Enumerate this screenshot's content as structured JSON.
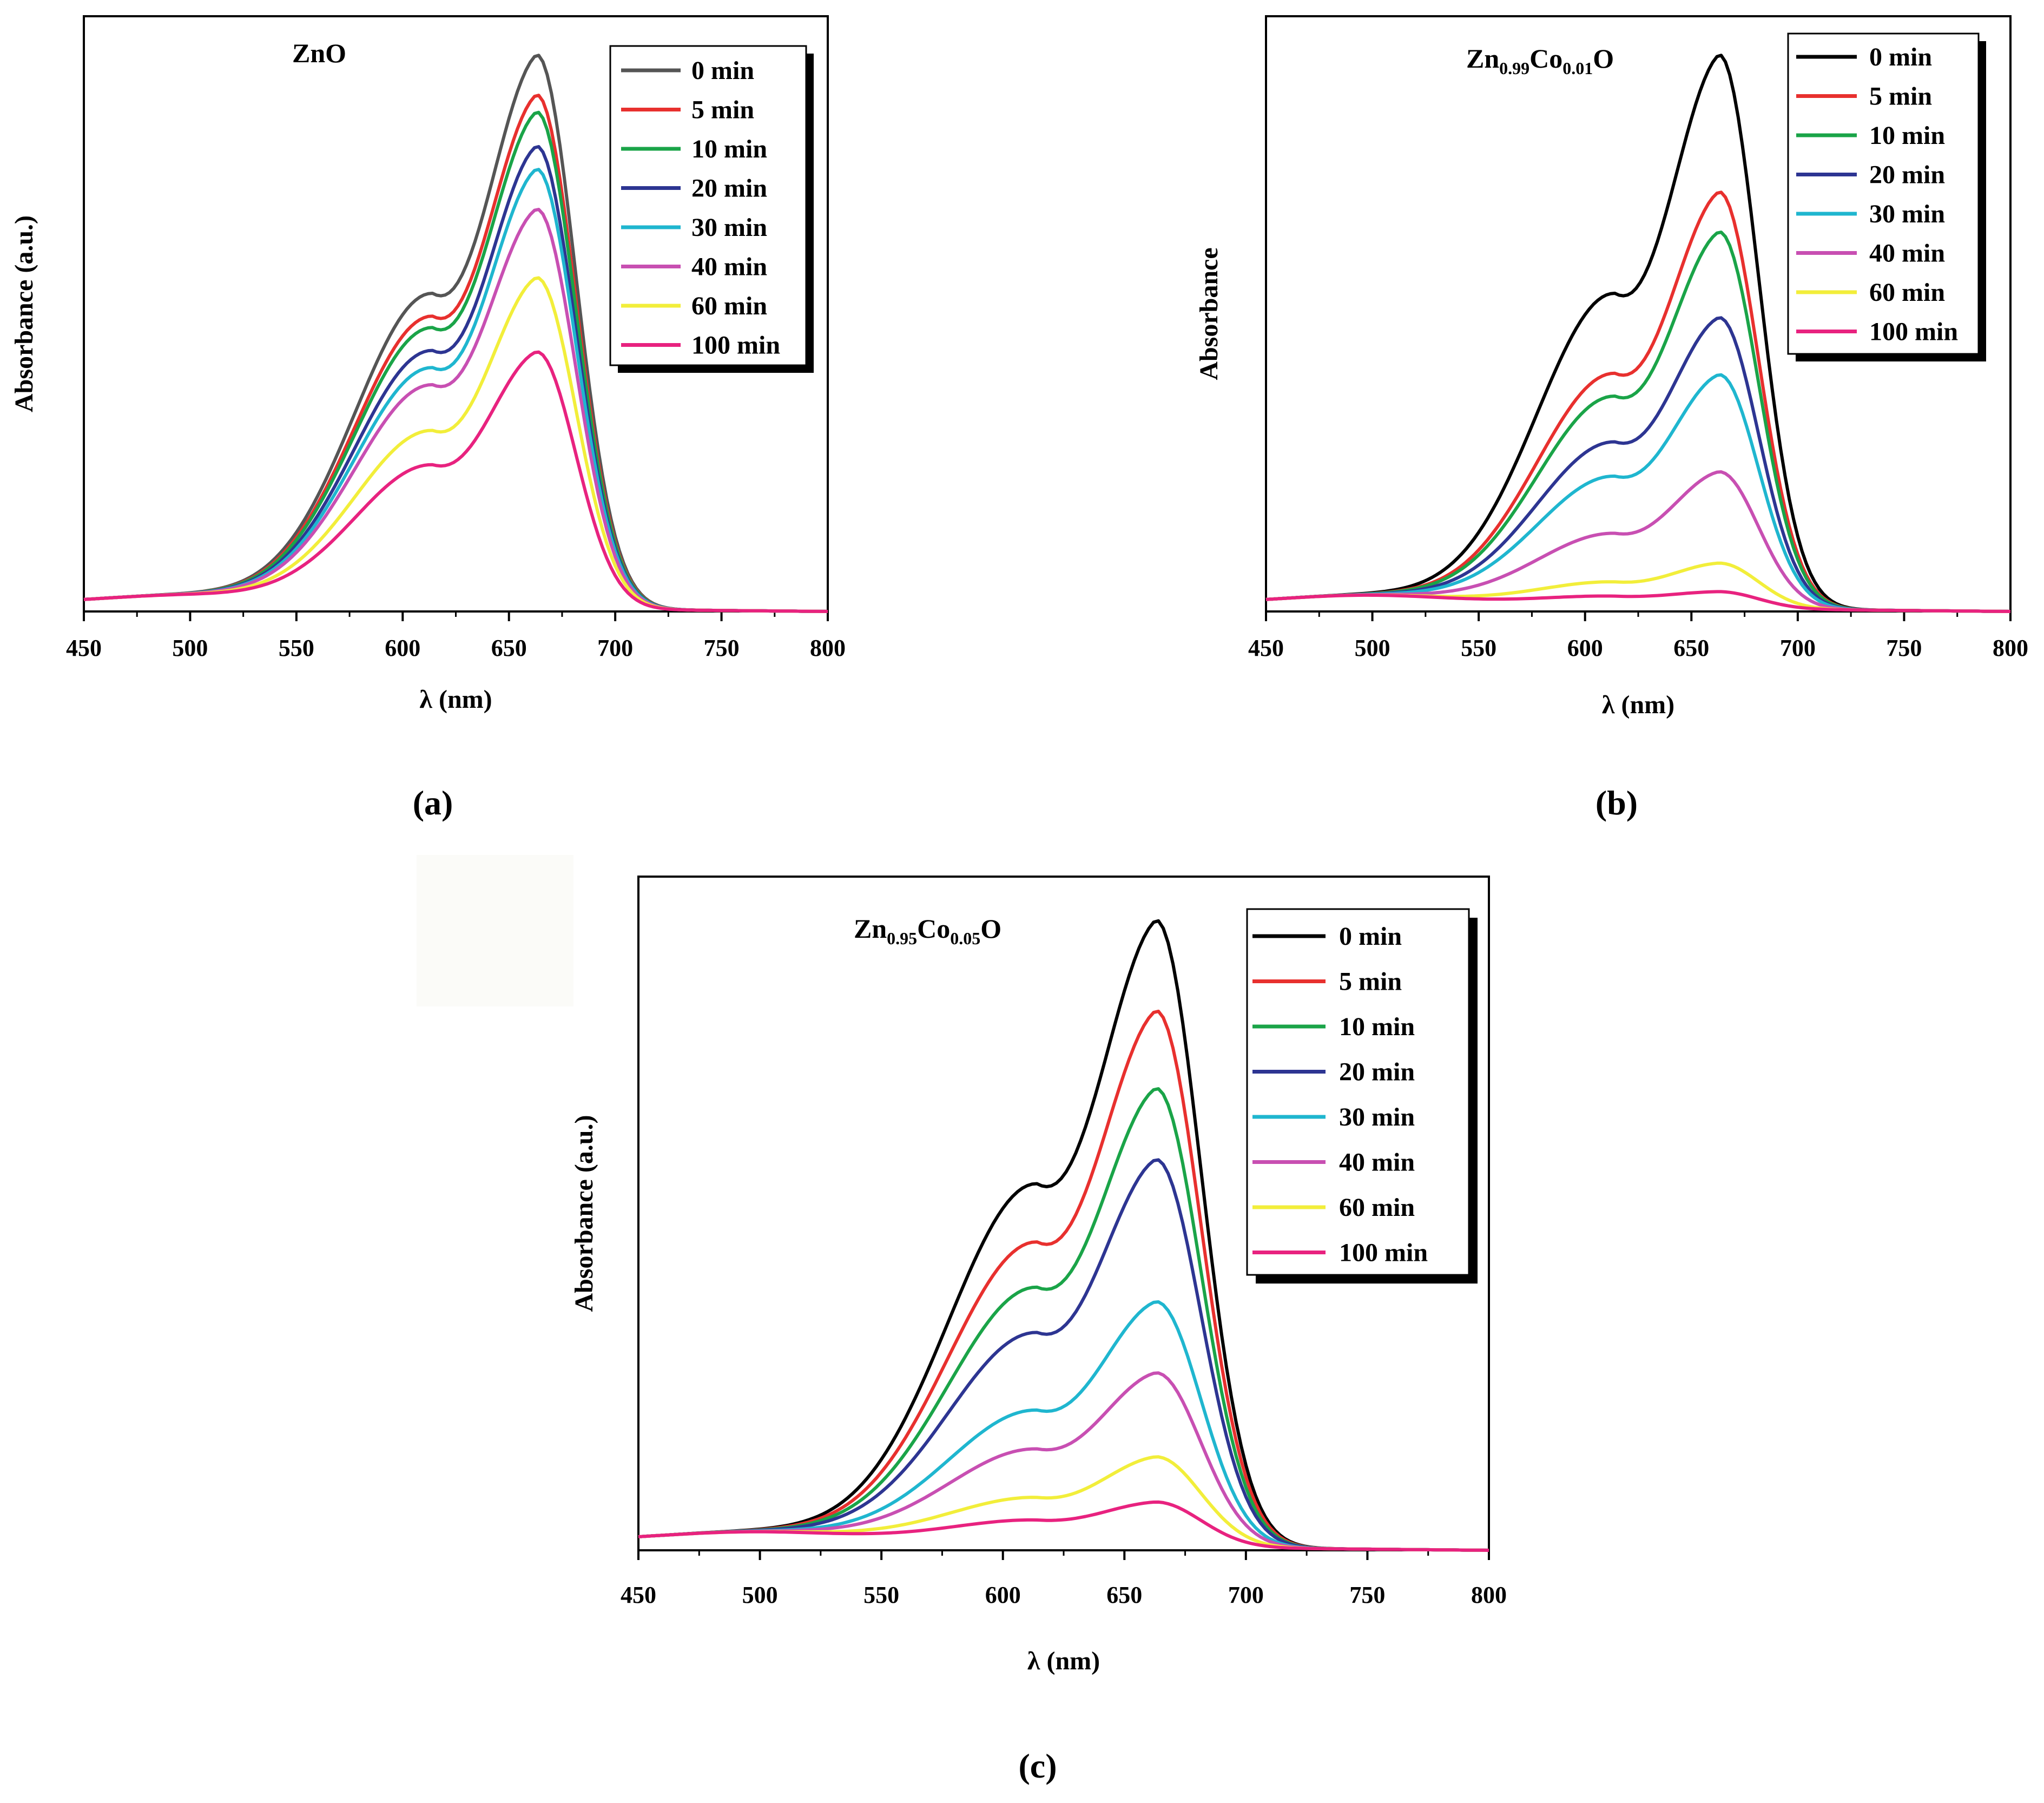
{
  "figure": {
    "captions": [
      {
        "prefix": "(",
        "letter": "a",
        "suffix": ")"
      },
      {
        "prefix": "(",
        "letter": "b",
        "suffix": ")"
      },
      {
        "prefix": "(",
        "letter": "c",
        "suffix": ")"
      }
    ],
    "series_colors": {
      "0 min": "#000000",
      "5 min": "#e8302e",
      "10 min": "#1aa448",
      "20 min": "#2d3592",
      "30 min": "#1fb6cf",
      "40 min": "#c84fb2",
      "60 min": "#f2ee3a",
      "100 min": "#e8227f"
    },
    "panel_a_first_series_color": "#555555"
  },
  "chart_data": [
    {
      "type": "line",
      "panel": "a",
      "title": "ZnO",
      "title_parts": [
        {
          "t": "ZnO",
          "sub": false
        }
      ],
      "xlabel": "λ (nm)",
      "ylabel": "Absorbance (a.u.)",
      "xlim": [
        450,
        800
      ],
      "ylim": [
        0,
        1.0
      ],
      "xticks": [
        450,
        500,
        550,
        600,
        650,
        700,
        750,
        800
      ],
      "legend_position": "top-right",
      "peak_nm": 663,
      "shoulder_nm": 614,
      "series": [
        {
          "name": "0 min",
          "peak": 0.97,
          "shoulder": 0.55
        },
        {
          "name": "5 min",
          "peak": 0.9,
          "shoulder": 0.51
        },
        {
          "name": "10 min",
          "peak": 0.87,
          "shoulder": 0.49
        },
        {
          "name": "20 min",
          "peak": 0.81,
          "shoulder": 0.45
        },
        {
          "name": "30 min",
          "peak": 0.77,
          "shoulder": 0.42
        },
        {
          "name": "40 min",
          "peak": 0.7,
          "shoulder": 0.39
        },
        {
          "name": "60 min",
          "peak": 0.58,
          "shoulder": 0.31
        },
        {
          "name": "100 min",
          "peak": 0.45,
          "shoulder": 0.25
        }
      ]
    },
    {
      "type": "line",
      "panel": "b",
      "title": "Zn0.99Co0.01O",
      "title_parts": [
        {
          "t": "Zn",
          "sub": false
        },
        {
          "t": "0.99",
          "sub": true
        },
        {
          "t": "Co",
          "sub": false
        },
        {
          "t": "0.01",
          "sub": true
        },
        {
          "t": "O",
          "sub": false
        }
      ],
      "xlabel": "λ (nm)",
      "ylabel": "Absorbance",
      "xlim": [
        450,
        800
      ],
      "ylim": [
        0,
        1.0
      ],
      "xticks": [
        450,
        500,
        550,
        600,
        650,
        700,
        750,
        800
      ],
      "legend_position": "top-right",
      "peak_nm": 663,
      "shoulder_nm": 614,
      "series": [
        {
          "name": "0 min",
          "peak": 0.97,
          "shoulder": 0.55
        },
        {
          "name": "5 min",
          "peak": 0.73,
          "shoulder": 0.41
        },
        {
          "name": "10 min",
          "peak": 0.66,
          "shoulder": 0.37
        },
        {
          "name": "20 min",
          "peak": 0.51,
          "shoulder": 0.29
        },
        {
          "name": "30 min",
          "peak": 0.41,
          "shoulder": 0.23
        },
        {
          "name": "40 min",
          "peak": 0.24,
          "shoulder": 0.13
        },
        {
          "name": "60 min",
          "peak": 0.08,
          "shoulder": 0.045
        },
        {
          "name": "100 min",
          "peak": 0.03,
          "shoulder": 0.02
        }
      ]
    },
    {
      "type": "line",
      "panel": "c",
      "title": "Zn0.95Co0.05O",
      "title_parts": [
        {
          "t": "Zn",
          "sub": false
        },
        {
          "t": "0.95",
          "sub": true
        },
        {
          "t": "Co",
          "sub": false
        },
        {
          "t": "0.05",
          "sub": true
        },
        {
          "t": "O",
          "sub": false
        }
      ],
      "xlabel": "λ (nm)",
      "ylabel": "Absorbance (a.u.)",
      "xlim": [
        450,
        800
      ],
      "ylim": [
        0,
        1.0
      ],
      "xticks": [
        450,
        500,
        550,
        600,
        650,
        700,
        750,
        800
      ],
      "legend_position": "top-right",
      "peak_nm": 663,
      "shoulder_nm": 614,
      "series": [
        {
          "name": "0 min",
          "peak": 0.97,
          "shoulder": 0.56
        },
        {
          "name": "5 min",
          "peak": 0.83,
          "shoulder": 0.47
        },
        {
          "name": "10 min",
          "peak": 0.71,
          "shoulder": 0.4
        },
        {
          "name": "20 min",
          "peak": 0.6,
          "shoulder": 0.33
        },
        {
          "name": "30 min",
          "peak": 0.38,
          "shoulder": 0.21
        },
        {
          "name": "40 min",
          "peak": 0.27,
          "shoulder": 0.15
        },
        {
          "name": "60 min",
          "peak": 0.14,
          "shoulder": 0.075
        },
        {
          "name": "100 min",
          "peak": 0.07,
          "shoulder": 0.04
        }
      ]
    }
  ]
}
